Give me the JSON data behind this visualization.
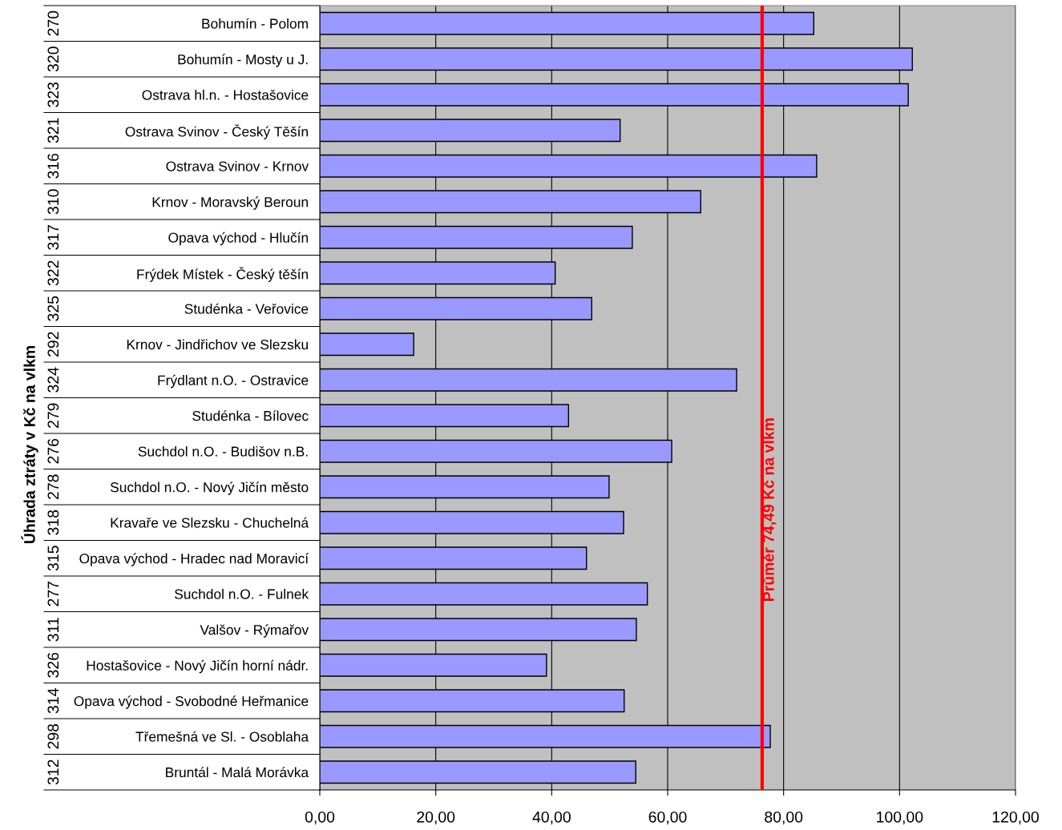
{
  "chart_data": {
    "type": "bar",
    "orientation": "horizontal",
    "ylabel": "Úhrada ztráty v Kč na vlkm",
    "categories": [
      "Bohumín - Polom",
      "Bohumín - Mosty u J.",
      "Ostrava hl.n. - Hostašovice",
      "Ostrava Svinov - Český Těšín",
      "Ostrava Svinov - Krnov",
      "Krnov - Moravský Beroun",
      "Opava východ - Hlučín",
      "Frýdek Místek - Český těšín",
      "Studénka - Veřovice",
      "Krnov - Jindřichov ve Slezsku",
      "Frýdlant n.O. - Ostravice",
      "Studénka - Bílovec",
      "Suchdol n.O. - Budišov n.B.",
      "Suchdol n.O. - Nový Jičín město",
      "Kravaře ve Slezsku - Chuchelná",
      "Opava východ - Hradec nad Moravicí",
      "Suchdol n.O. - Fulnek",
      "Valšov - Rýmařov",
      "Hostašovice - Nový Jičín horní nádr.",
      "Opava východ - Svobodné Heřmanice",
      "Třemešná ve Sl. - Osoblaha",
      "Bruntál - Malá Morávka"
    ],
    "y2_categories": [
      "270",
      "320",
      "323",
      "321",
      "316",
      "310",
      "317",
      "322",
      "325",
      "292",
      "324",
      "279",
      "276",
      "278",
      "318",
      "315",
      "277",
      "311",
      "326",
      "314",
      "298",
      "312"
    ],
    "values": [
      85.2,
      102.2,
      101.5,
      51.8,
      85.7,
      65.7,
      53.9,
      40.6,
      46.9,
      16.2,
      71.9,
      42.9,
      60.7,
      49.9,
      52.4,
      46.0,
      56.5,
      54.6,
      39.1,
      52.5,
      77.7,
      54.5
    ],
    "color": "#9999ff",
    "xlim": [
      0,
      120
    ],
    "xticks": [
      {
        "value": 0,
        "label": "0,00"
      },
      {
        "value": 20,
        "label": "20,00"
      },
      {
        "value": 40,
        "label": "40,00"
      },
      {
        "value": 60,
        "label": "60,00"
      },
      {
        "value": 80,
        "label": "80,00"
      },
      {
        "value": 100,
        "label": "100,00"
      },
      {
        "value": 120,
        "label": "120,00"
      }
    ],
    "grid": "x",
    "ref_lines": [
      {
        "axis": "x",
        "value": 76.3,
        "label": "Průměr 74,49 Kč na vlkm",
        "color": "#ff0000"
      }
    ]
  }
}
